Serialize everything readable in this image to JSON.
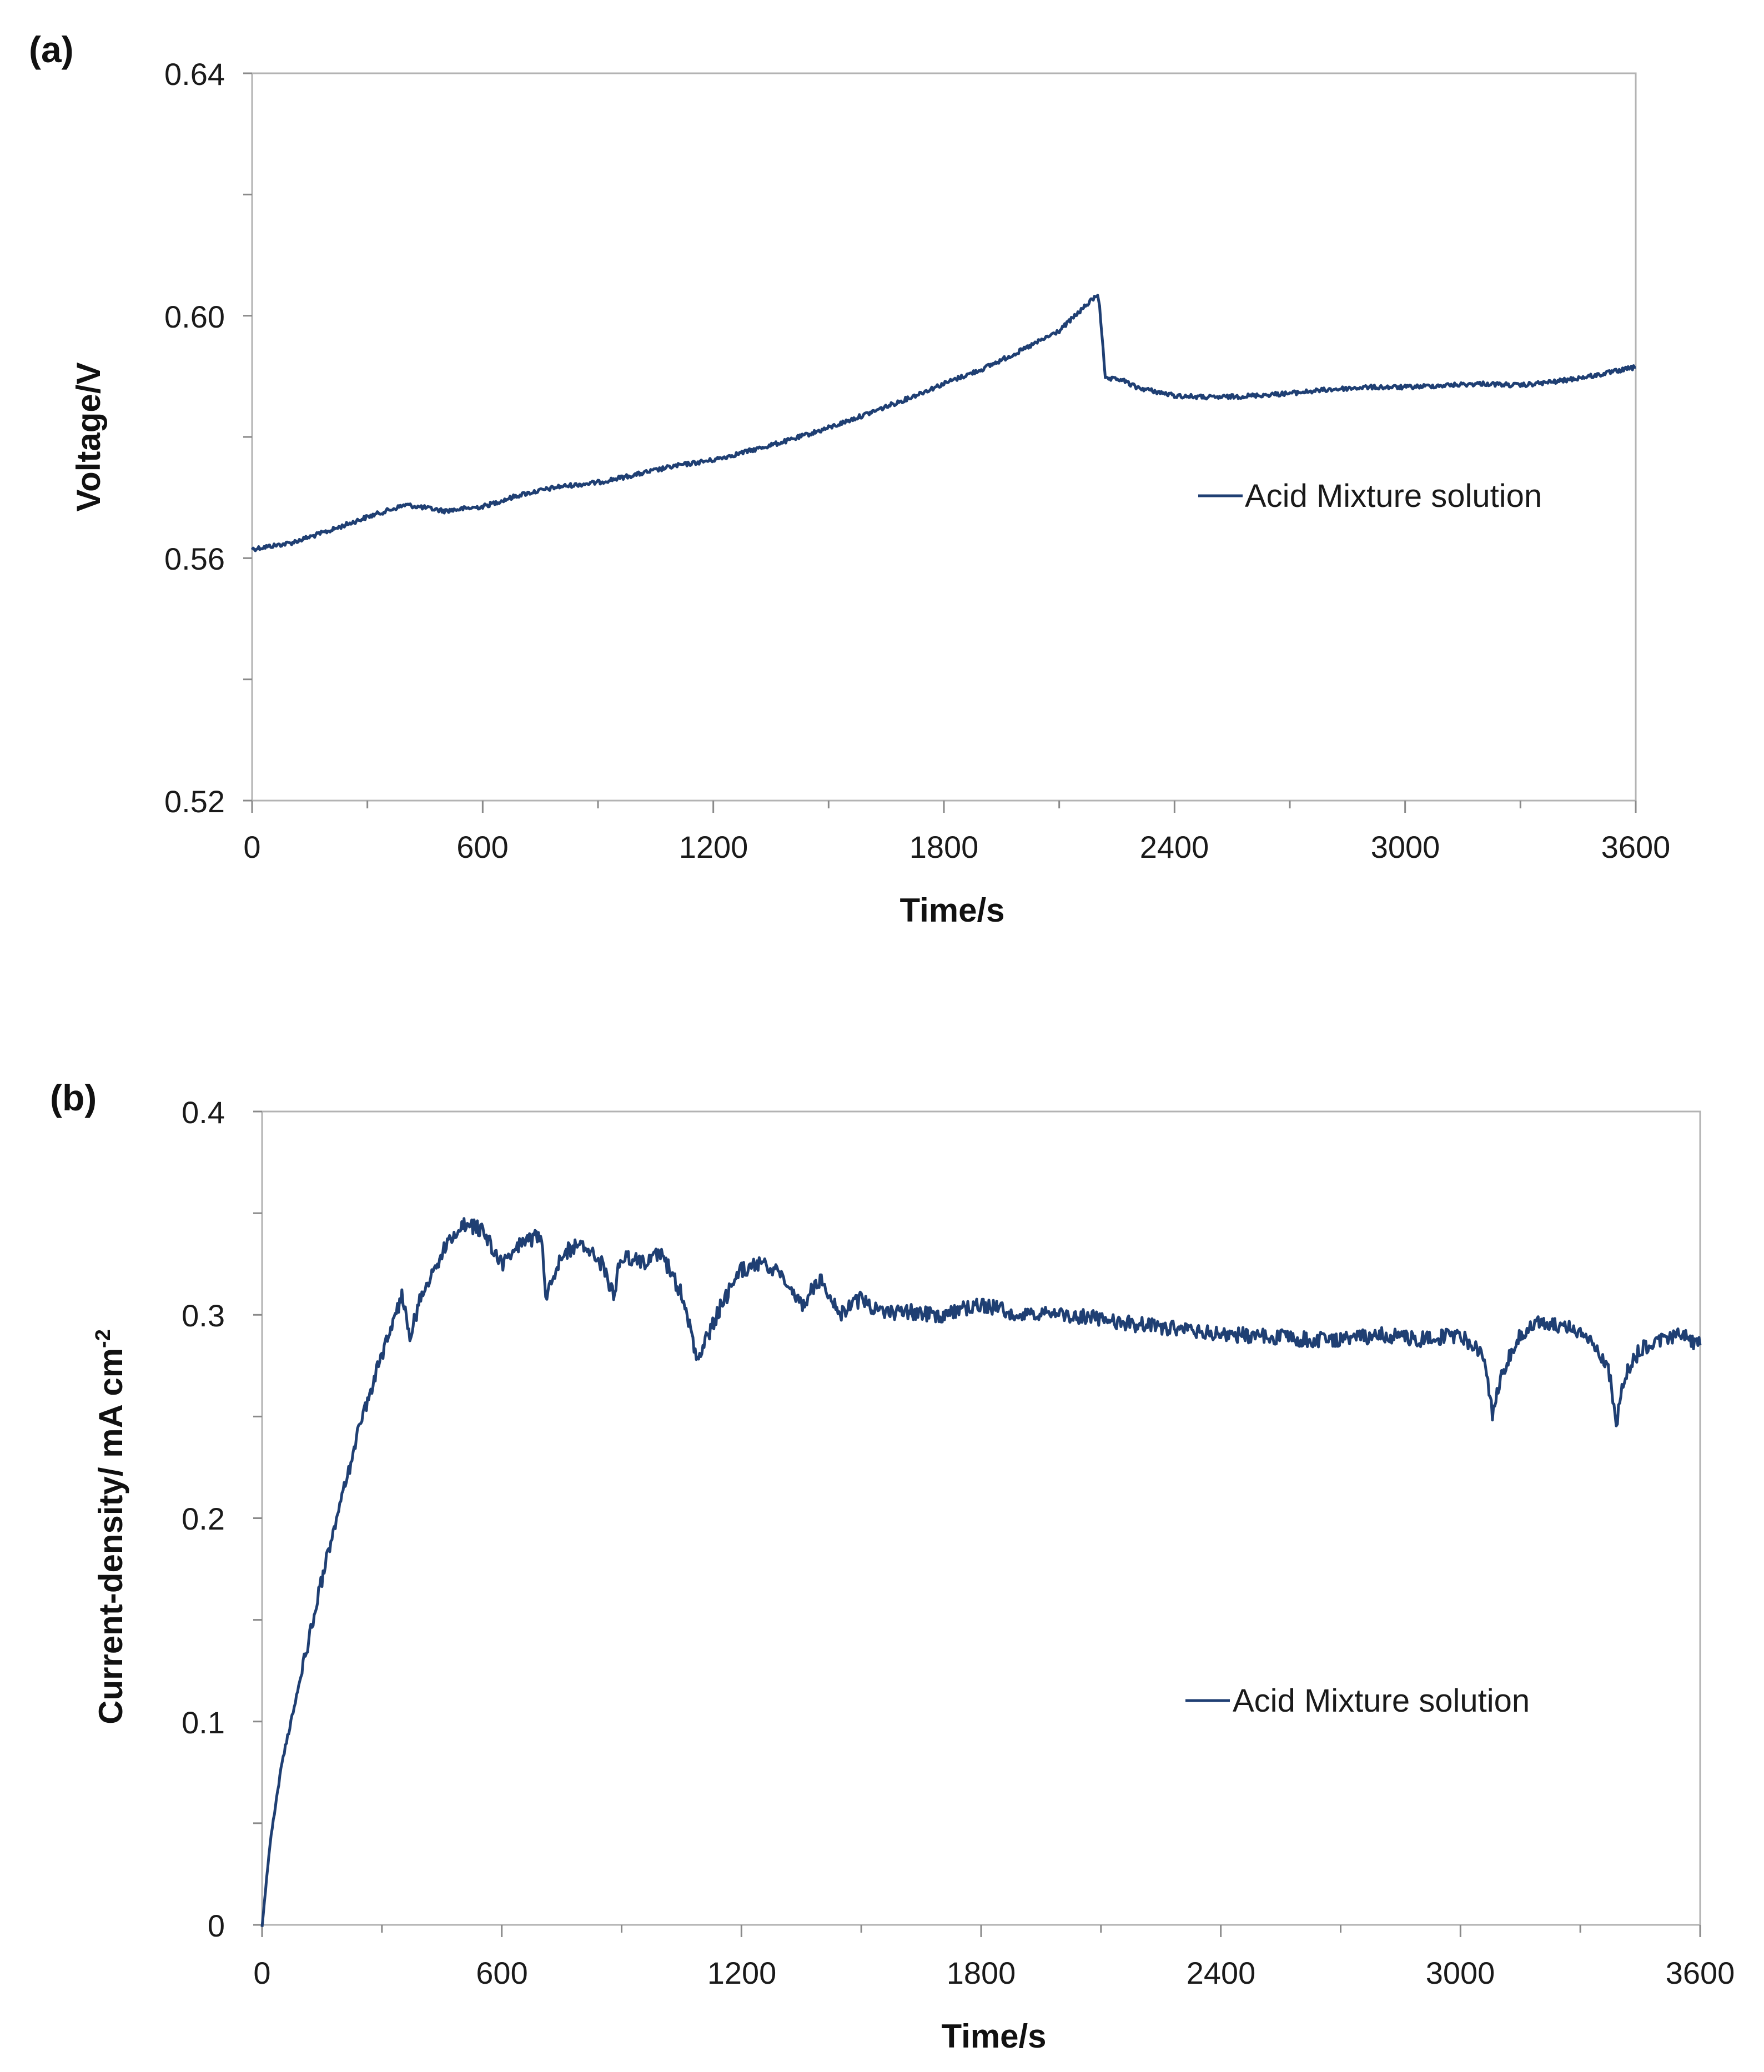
{
  "chart_data": [
    {
      "panel_label": "(a)",
      "type": "line",
      "xlabel": "Time/s",
      "ylabel": "Voltage/V",
      "xlim": [
        0,
        3600
      ],
      "ylim": [
        0.52,
        0.64
      ],
      "x_ticks": [
        "0",
        "600",
        "1200",
        "1800",
        "2400",
        "3000",
        "3600"
      ],
      "y_ticks": [
        "0.52",
        "0.56",
        "0.60",
        "0.64"
      ],
      "legend": "Acid Mixture solution",
      "color": "#1f3f73",
      "series": [
        {
          "name": "Acid Mixture solution",
          "x": [
            0,
            100,
            200,
            300,
            400,
            500,
            600,
            700,
            800,
            900,
            1000,
            1100,
            1200,
            1300,
            1400,
            1500,
            1600,
            1700,
            1800,
            1900,
            2000,
            2100,
            2200,
            2205,
            2220,
            2260,
            2300,
            2400,
            2500,
            2600,
            2700,
            2800,
            2900,
            3000,
            3100,
            3200,
            3300,
            3400,
            3500,
            3600
          ],
          "y": [
            0.5615,
            0.5625,
            0.5645,
            0.5668,
            0.5688,
            0.5678,
            0.5685,
            0.5705,
            0.5718,
            0.5725,
            0.5738,
            0.5752,
            0.5762,
            0.5778,
            0.5795,
            0.5815,
            0.5838,
            0.5862,
            0.5888,
            0.5912,
            0.5942,
            0.5975,
            0.6035,
            0.6018,
            0.5895,
            0.5895,
            0.5882,
            0.5868,
            0.5865,
            0.5868,
            0.5872,
            0.5878,
            0.5882,
            0.5882,
            0.5885,
            0.5888,
            0.5885,
            0.5892,
            0.5902,
            0.5915
          ]
        }
      ]
    },
    {
      "panel_label": "(b)",
      "type": "line",
      "xlabel": "Time/s",
      "ylabel": "Current-density/ mA cm",
      "ylabel_superscript": "-2",
      "xlim": [
        0,
        3600
      ],
      "ylim": [
        0,
        0.4
      ],
      "x_ticks": [
        "0",
        "600",
        "1200",
        "1800",
        "2400",
        "3000",
        "3600"
      ],
      "y_ticks": [
        "0",
        "0.1",
        "0.2",
        "0.3",
        "0.4"
      ],
      "legend": "Acid Mixture solution",
      "color": "#1f3f73",
      "series": [
        {
          "name": "Acid Mixture solution",
          "x": [
            0,
            20,
            50,
            100,
            150,
            200,
            250,
            300,
            350,
            370,
            400,
            450,
            500,
            550,
            600,
            650,
            700,
            710,
            750,
            800,
            850,
            880,
            900,
            950,
            1000,
            1050,
            1090,
            1150,
            1200,
            1250,
            1300,
            1350,
            1400,
            1450,
            1500,
            1550,
            1600,
            1700,
            1800,
            1900,
            2000,
            2100,
            2200,
            2300,
            2400,
            2500,
            2600,
            2700,
            2800,
            2900,
            3000,
            3060,
            3080,
            3100,
            3150,
            3200,
            3300,
            3370,
            3390,
            3410,
            3450,
            3500,
            3550,
            3600
          ],
          "y": [
            0,
            0.04,
            0.08,
            0.125,
            0.17,
            0.21,
            0.25,
            0.28,
            0.31,
            0.29,
            0.31,
            0.33,
            0.345,
            0.342,
            0.325,
            0.335,
            0.34,
            0.31,
            0.33,
            0.335,
            0.325,
            0.31,
            0.33,
            0.325,
            0.33,
            0.31,
            0.278,
            0.305,
            0.322,
            0.325,
            0.32,
            0.305,
            0.318,
            0.3,
            0.308,
            0.3,
            0.302,
            0.3,
            0.305,
            0.3,
            0.3,
            0.298,
            0.295,
            0.293,
            0.29,
            0.29,
            0.288,
            0.288,
            0.29,
            0.288,
            0.29,
            0.28,
            0.25,
            0.27,
            0.29,
            0.296,
            0.292,
            0.275,
            0.245,
            0.27,
            0.283,
            0.288,
            0.29,
            0.285
          ]
        }
      ]
    }
  ]
}
